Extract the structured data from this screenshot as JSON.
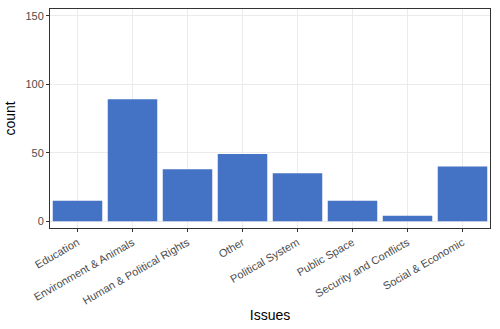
{
  "chart_data": {
    "type": "bar",
    "x_label": "Issues",
    "y_label": "count",
    "categories": [
      "Education",
      "Environment & Animals",
      "Human & Political Rights",
      "Other",
      "Political System",
      "Public Space",
      "Security and Conflicts",
      "Social & Economic"
    ],
    "values": [
      15,
      89,
      38,
      49,
      35,
      15,
      4,
      40
    ],
    "color": "#4472c4",
    "ylim": [
      -5,
      155
    ],
    "yticks": [
      0,
      50,
      100,
      150
    ],
    "grid": true
  }
}
